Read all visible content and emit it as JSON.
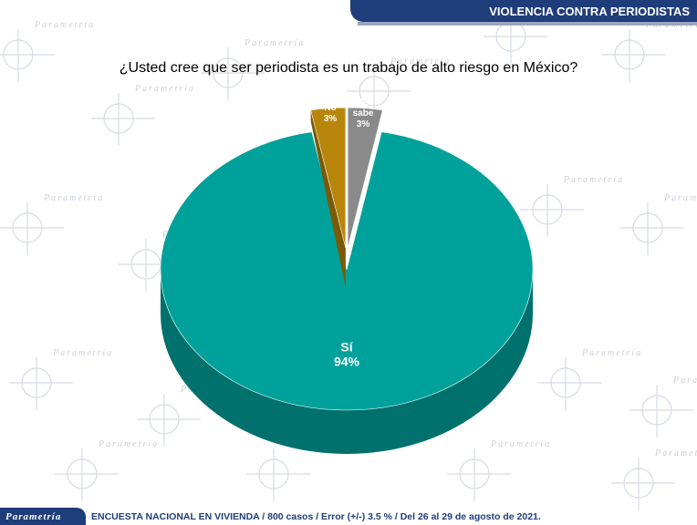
{
  "header": {
    "banner": "VIOLENCIA CONTRA PERIODISTAS"
  },
  "question": "¿Usted cree que ser periodista es un trabajo de alto riesgo en México?",
  "footer": {
    "logo": "Parametría",
    "note": "ENCUESTA NACIONAL EN VIVIENDA / 800 casos / Error (+/-) 3.5 % / Del 26 al 29 de agosto de 2021."
  },
  "watermark": {
    "text": "Parametría"
  },
  "colors": {
    "si": "#00a19a",
    "no": "#b8860b",
    "no_sabe": "#8a8a8a",
    "banner": "#1f3d7a"
  },
  "chart_data": {
    "type": "pie",
    "title": "¿Usted cree que ser periodista es un trabajo de alto riesgo en México?",
    "slices": [
      {
        "label": "Sí",
        "value": 94,
        "display": "94%",
        "exploded": false
      },
      {
        "label": "No",
        "value": 3,
        "display": "3%",
        "exploded": true
      },
      {
        "label": "No sabe",
        "value": 3,
        "display": "3%",
        "exploded": true
      }
    ],
    "unit": "%",
    "legend": "none"
  }
}
